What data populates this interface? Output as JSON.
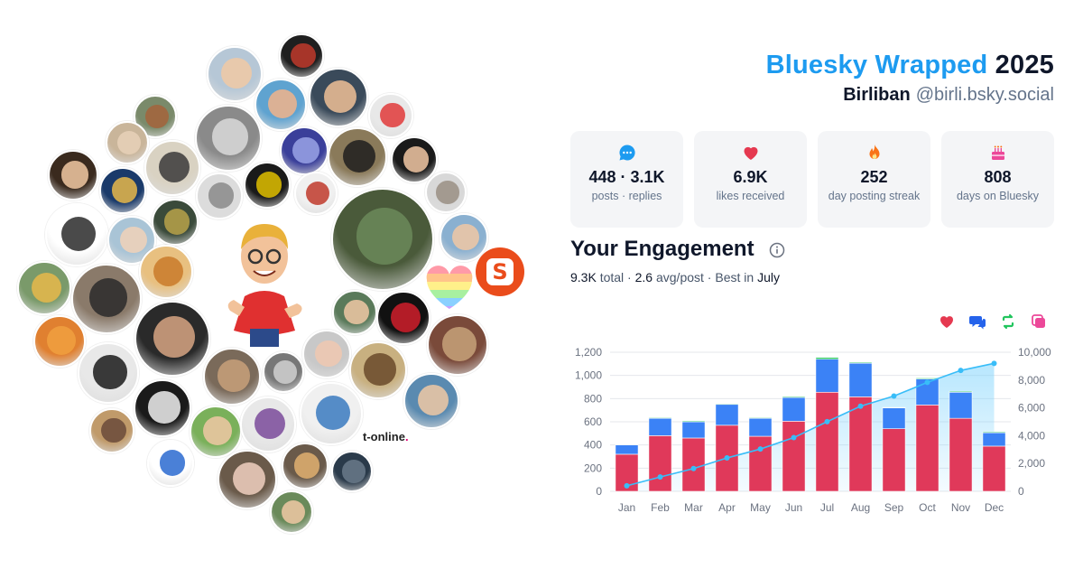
{
  "header": {
    "brand": "Bluesky Wrapped",
    "year": "2025",
    "display_name": "Birliban",
    "handle": "@birli.bsky.social"
  },
  "stats": [
    {
      "icon": "speech-bubble-icon",
      "value": "448 · 3.1K",
      "label": "posts · replies",
      "color": "#1d9bf0"
    },
    {
      "icon": "heart-icon",
      "value": "6.9K",
      "label": "likes received",
      "color": "#e53950"
    },
    {
      "icon": "flame-icon",
      "value": "252",
      "label": "day posting streak",
      "color": "#f97316"
    },
    {
      "icon": "cake-icon",
      "value": "808",
      "label": "days on Bluesky",
      "color": "#ec4899"
    }
  ],
  "engagement": {
    "title": "Your Engagement",
    "total_value": "9.3K",
    "total_label": "total",
    "avg_value": "2.6",
    "avg_label": "avg/post",
    "best_prefix": "Best in",
    "best_month": "July",
    "legend_icons": [
      {
        "name": "likes-legend-icon",
        "color": "#e53950"
      },
      {
        "name": "replies-legend-icon",
        "color": "#2563eb"
      },
      {
        "name": "reposts-legend-icon",
        "color": "#22c55e"
      },
      {
        "name": "quotes-legend-icon",
        "color": "#ec4899"
      }
    ]
  },
  "avatars": {
    "memoji_label": "Birliban",
    "brand_letter": "S",
    "tonline_text": "t-online",
    "tonline_dot": "."
  },
  "chart_data": {
    "type": "bar",
    "categories": [
      "Jan",
      "Feb",
      "Mar",
      "Apr",
      "May",
      "Jun",
      "Jul",
      "Aug",
      "Sep",
      "Oct",
      "Nov",
      "Dec"
    ],
    "stacked": true,
    "series": [
      {
        "name": "Likes",
        "color": "#e0395a",
        "values": [
          320,
          480,
          460,
          570,
          475,
          605,
          855,
          815,
          540,
          745,
          630,
          390
        ]
      },
      {
        "name": "Replies",
        "color": "#3b82f6",
        "values": [
          80,
          150,
          140,
          180,
          155,
          205,
          285,
          290,
          180,
          225,
          225,
          115
        ]
      },
      {
        "name": "Reposts",
        "color": "#22c55e",
        "values": [
          2,
          6,
          8,
          6,
          6,
          8,
          15,
          8,
          4,
          8,
          8,
          8
        ]
      }
    ],
    "cumulative": {
      "name": "Cumulative",
      "color": "#38bdf8",
      "values": [
        400,
        1030,
        1640,
        2400,
        3040,
        3860,
        5010,
        6120,
        6850,
        7830,
        8690,
        9200
      ]
    },
    "ylim": [
      0,
      1200
    ],
    "yticks": [
      "0",
      "200",
      "400",
      "600",
      "800",
      "1,000",
      "1,200"
    ],
    "ylim_right": [
      0,
      10000
    ],
    "yticks_right": [
      "0",
      "2,000",
      "4,000",
      "6,000",
      "8,000",
      "10,000"
    ],
    "grid": true
  }
}
